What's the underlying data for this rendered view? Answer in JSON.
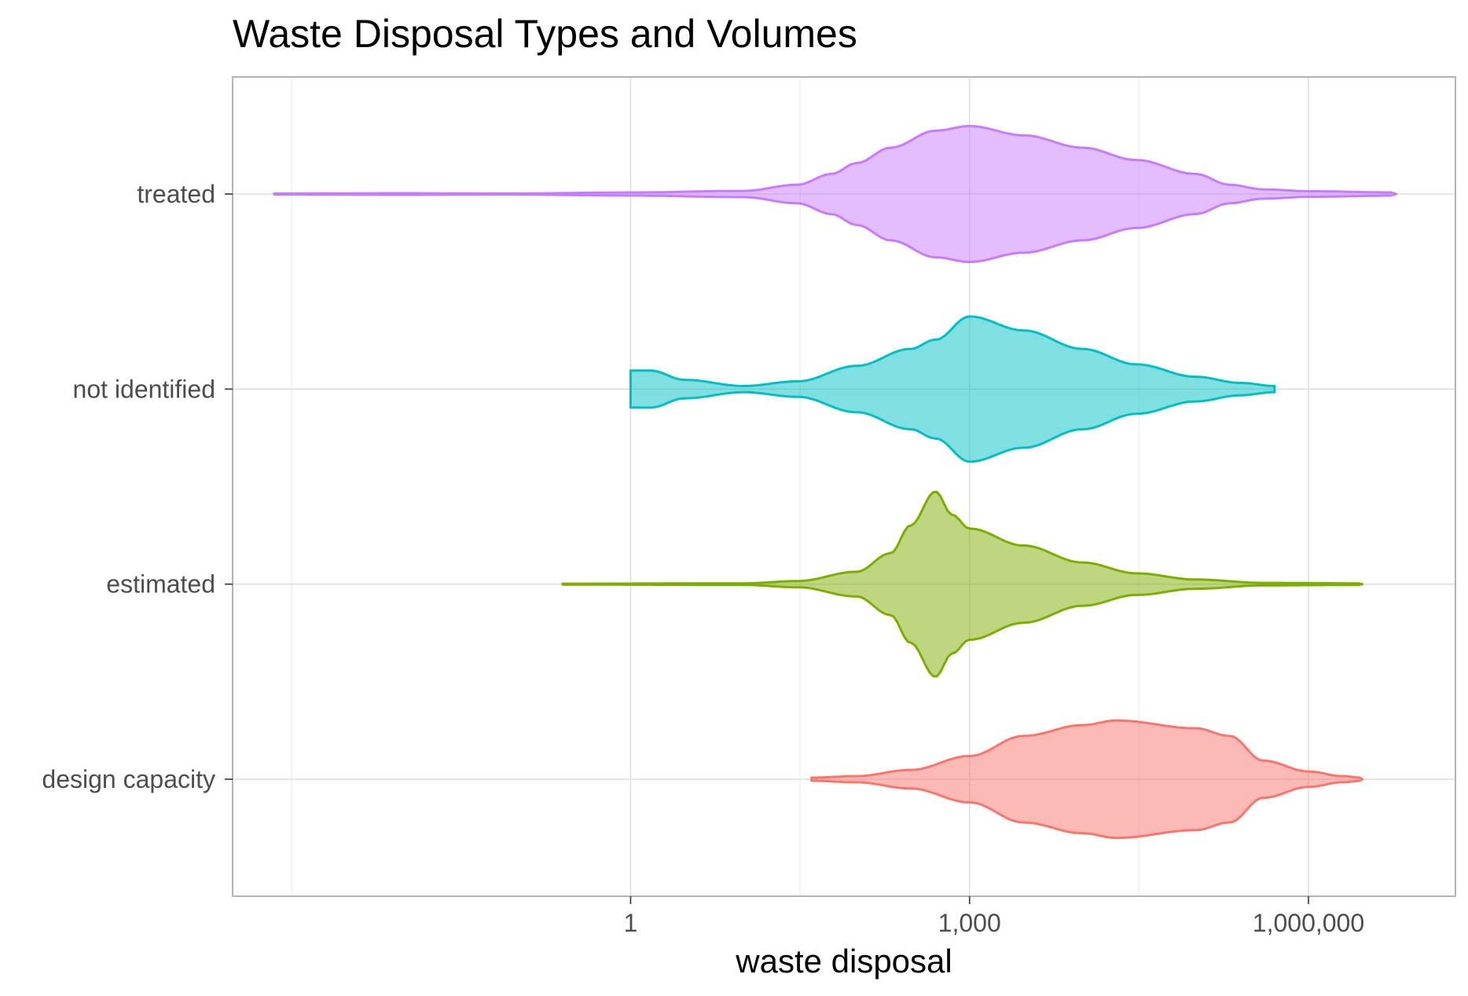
{
  "chart_data": {
    "type": "violin",
    "title": "Waste Disposal Types and Volumes",
    "xlabel": "waste disposal",
    "ylabel": "",
    "x_scale": "log10",
    "xlim": [
      0.0003,
      20000000.0
    ],
    "x_ticks": [
      {
        "value": 1,
        "label": "1"
      },
      {
        "value": 1000,
        "label": "1,000"
      },
      {
        "value": 1000000,
        "label": "1,000,000"
      }
    ],
    "x_minor_gridlines": [
      0.001,
      31.6,
      31600,
      31600000
    ],
    "categories": [
      "design capacity",
      "estimated",
      "not identified",
      "treated"
    ],
    "legend": "none",
    "grid": true,
    "series": [
      {
        "name": "treated",
        "color": "#C77CFF",
        "profile": [
          [
            0.0007,
            0.003
          ],
          [
            0.01,
            0.005
          ],
          [
            0.08,
            0.003
          ],
          [
            1,
            0.01
          ],
          [
            10,
            0.02
          ],
          [
            30,
            0.06
          ],
          [
            60,
            0.13
          ],
          [
            100,
            0.2
          ],
          [
            200,
            0.3
          ],
          [
            500,
            0.41
          ],
          [
            1000,
            0.44
          ],
          [
            3000,
            0.38
          ],
          [
            10000,
            0.3
          ],
          [
            30000,
            0.22
          ],
          [
            100000,
            0.13
          ],
          [
            200000,
            0.06
          ],
          [
            400000,
            0.03
          ],
          [
            1000000,
            0.018
          ],
          [
            6000000,
            0.01
          ]
        ]
      },
      {
        "name": "not identified",
        "color": "#00BFC4",
        "profile": [
          [
            1,
            0.12
          ],
          [
            1.5,
            0.12
          ],
          [
            3,
            0.06
          ],
          [
            10,
            0.02
          ],
          [
            30,
            0.05
          ],
          [
            100,
            0.15
          ],
          [
            300,
            0.26
          ],
          [
            500,
            0.32
          ],
          [
            1000,
            0.47
          ],
          [
            3000,
            0.38
          ],
          [
            10000,
            0.26
          ],
          [
            30000,
            0.16
          ],
          [
            100000,
            0.08
          ],
          [
            250000,
            0.04
          ],
          [
            500000,
            0.02
          ]
        ]
      },
      {
        "name": "estimated",
        "color": "#7CAE00",
        "profile": [
          [
            0.25,
            0.003
          ],
          [
            10,
            0.005
          ],
          [
            30,
            0.02
          ],
          [
            100,
            0.08
          ],
          [
            200,
            0.2
          ],
          [
            300,
            0.38
          ],
          [
            500,
            0.6
          ],
          [
            700,
            0.45
          ],
          [
            1000,
            0.36
          ],
          [
            3000,
            0.25
          ],
          [
            10000,
            0.14
          ],
          [
            30000,
            0.07
          ],
          [
            100000,
            0.03
          ],
          [
            400000,
            0.008
          ],
          [
            3000000,
            0.005
          ]
        ]
      },
      {
        "name": "design capacity",
        "color": "#F8766D",
        "profile": [
          [
            40,
            0.01
          ],
          [
            100,
            0.02
          ],
          [
            300,
            0.06
          ],
          [
            1000,
            0.15
          ],
          [
            3000,
            0.28
          ],
          [
            10000,
            0.35
          ],
          [
            20000,
            0.38
          ],
          [
            100000,
            0.33
          ],
          [
            200000,
            0.28
          ],
          [
            400000,
            0.12
          ],
          [
            1000000,
            0.05
          ],
          [
            2000000,
            0.02
          ],
          [
            3000000,
            0.01
          ]
        ]
      }
    ]
  }
}
